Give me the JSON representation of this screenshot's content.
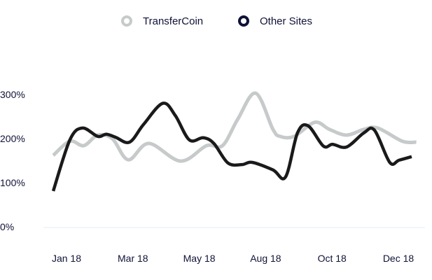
{
  "chart_data": {
    "type": "line",
    "title": "",
    "xlabel": "",
    "ylabel": "",
    "categories": [
      "Jan 18",
      "Mar 18",
      "May 18",
      "Aug 18",
      "Oct 18",
      "Dec 18"
    ],
    "y_ticks": [
      "0%",
      "100%",
      "200%",
      "300%"
    ],
    "ylim": [
      0,
      300
    ],
    "grid": false,
    "legend_position": "top",
    "smooth": true,
    "series": [
      {
        "name": "TransferCoin",
        "color": "#c6cacb",
        "x": [
          -0.2,
          0.05,
          0.26,
          0.47,
          0.69,
          0.93,
          1.24,
          1.72,
          2.11,
          2.35,
          2.58,
          2.85,
          3.11,
          3.22,
          3.43,
          3.74,
          3.96,
          4.22,
          4.48,
          4.69,
          5.06,
          5.27
        ],
        "values": [
          162,
          194,
          184,
          208,
          200,
          152,
          189,
          149,
          184,
          184,
          244,
          303,
          221,
          205,
          205,
          237,
          221,
          208,
          221,
          224,
          194,
          192
        ]
      },
      {
        "name": "Other Sites",
        "color": "#1a1a1c",
        "x": [
          -0.2,
          0.05,
          0.24,
          0.47,
          0.6,
          0.74,
          0.95,
          1.16,
          1.45,
          1.64,
          1.85,
          2.06,
          2.22,
          2.43,
          2.64,
          2.8,
          3.11,
          3.3,
          3.48,
          3.64,
          3.87,
          4.01,
          4.22,
          4.48,
          4.64,
          4.87,
          5.01,
          5.2
        ],
        "values": [
          81,
          197,
          224,
          205,
          210,
          203,
          192,
          232,
          280,
          252,
          197,
          202,
          189,
          145,
          141,
          146,
          129,
          113,
          213,
          229,
          183,
          187,
          181,
          213,
          219,
          146,
          151,
          159
        ]
      }
    ]
  },
  "legend_marker_colors": [
    "#c6cacb",
    "#0f1237"
  ]
}
